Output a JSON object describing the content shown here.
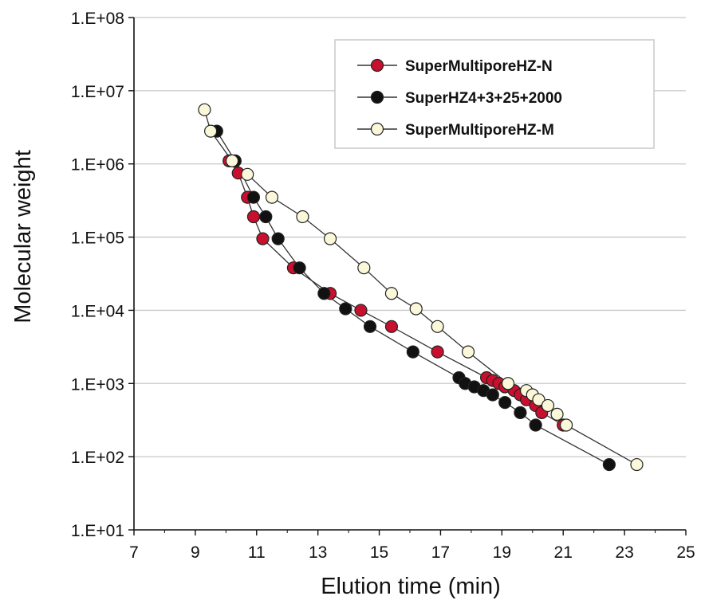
{
  "chart_data": {
    "type": "scatter",
    "xlabel": "Elution time (min)",
    "ylabel": "Molecular weight",
    "x_range": [
      7,
      25
    ],
    "x_ticks": [
      7,
      9,
      11,
      13,
      15,
      17,
      19,
      21,
      23,
      25
    ],
    "x_tick_labels": [
      "7",
      "9",
      "11",
      "13",
      "15",
      "17",
      "19",
      "21",
      "23",
      "25"
    ],
    "y_scale": "log",
    "y_range": [
      10,
      100000000
    ],
    "y_ticks": [
      10,
      100,
      1000,
      10000,
      100000,
      1000000,
      10000000,
      100000000
    ],
    "y_tick_labels": [
      "1.E+01",
      "1.E+02",
      "1.E+03",
      "1.E+04",
      "1.E+05",
      "1.E+06",
      "1.E+07",
      "1.E+08"
    ],
    "grid": "horizontal",
    "legend_position": "top-right",
    "series": [
      {
        "name": "SuperMultiporeHZ-N",
        "color": "#c8102e",
        "x": [
          10.1,
          10.4,
          10.7,
          10.9,
          11.2,
          12.2,
          13.4,
          14.4,
          15.4,
          16.9,
          18.5,
          18.7,
          18.9,
          19.1,
          19.4,
          19.6,
          19.8,
          20.1,
          20.3,
          21.0
        ],
        "y": [
          1100000,
          750000,
          350000,
          190000,
          95000,
          38000,
          17000,
          10000,
          6000,
          2700,
          1200,
          1100,
          1000,
          900,
          800,
          700,
          600,
          500,
          400,
          270
        ]
      },
      {
        "name": "SuperHZ4+3+25+2000",
        "color": "#111111",
        "x": [
          9.7,
          10.3,
          10.9,
          11.3,
          11.7,
          12.4,
          13.2,
          13.9,
          14.7,
          16.1,
          17.6,
          17.8,
          18.1,
          18.4,
          18.7,
          19.1,
          19.6,
          20.1,
          22.5
        ],
        "y": [
          2800000,
          1100000,
          350000,
          190000,
          95000,
          38000,
          17000,
          10500,
          6000,
          2700,
          1200,
          1000,
          900,
          800,
          700,
          550,
          400,
          270,
          78
        ]
      },
      {
        "name": "SuperMultiporeHZ-M",
        "color": "#fbf7d9",
        "x": [
          9.3,
          9.5,
          10.2,
          10.7,
          11.5,
          12.5,
          13.4,
          14.5,
          15.4,
          16.2,
          16.9,
          17.9,
          19.2,
          19.8,
          20.0,
          20.2,
          20.5,
          20.8,
          21.1,
          23.4
        ],
        "y": [
          5500000,
          2800000,
          1100000,
          720000,
          350000,
          190000,
          95000,
          38000,
          17000,
          10500,
          6000,
          2700,
          1000,
          800,
          700,
          600,
          500,
          380,
          270,
          78
        ]
      }
    ]
  }
}
